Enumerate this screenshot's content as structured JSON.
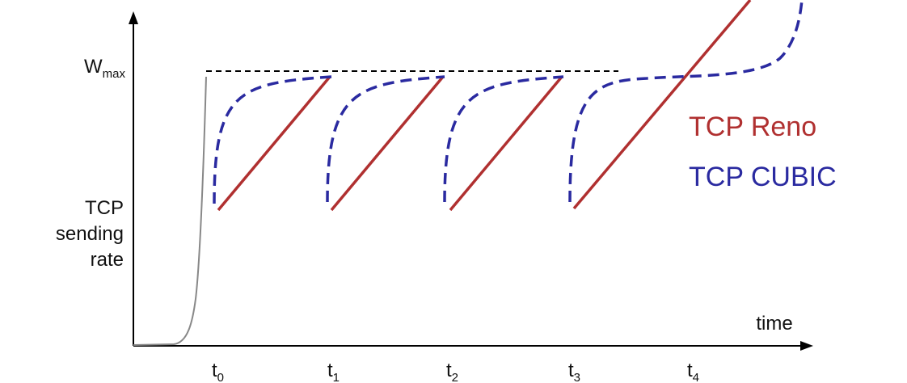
{
  "y_axis": {
    "max_label": {
      "base": "W",
      "sub": "max"
    },
    "label_lines": [
      "TCP",
      "sending",
      "rate"
    ]
  },
  "x_axis": {
    "label": "time",
    "ticks": [
      {
        "base": "t",
        "sub": "0"
      },
      {
        "base": "t",
        "sub": "1"
      },
      {
        "base": "t",
        "sub": "2"
      },
      {
        "base": "t",
        "sub": "3"
      },
      {
        "base": "t",
        "sub": "4"
      }
    ]
  },
  "legend": [
    "TCP Reno",
    "TCP CUBIC"
  ]
}
